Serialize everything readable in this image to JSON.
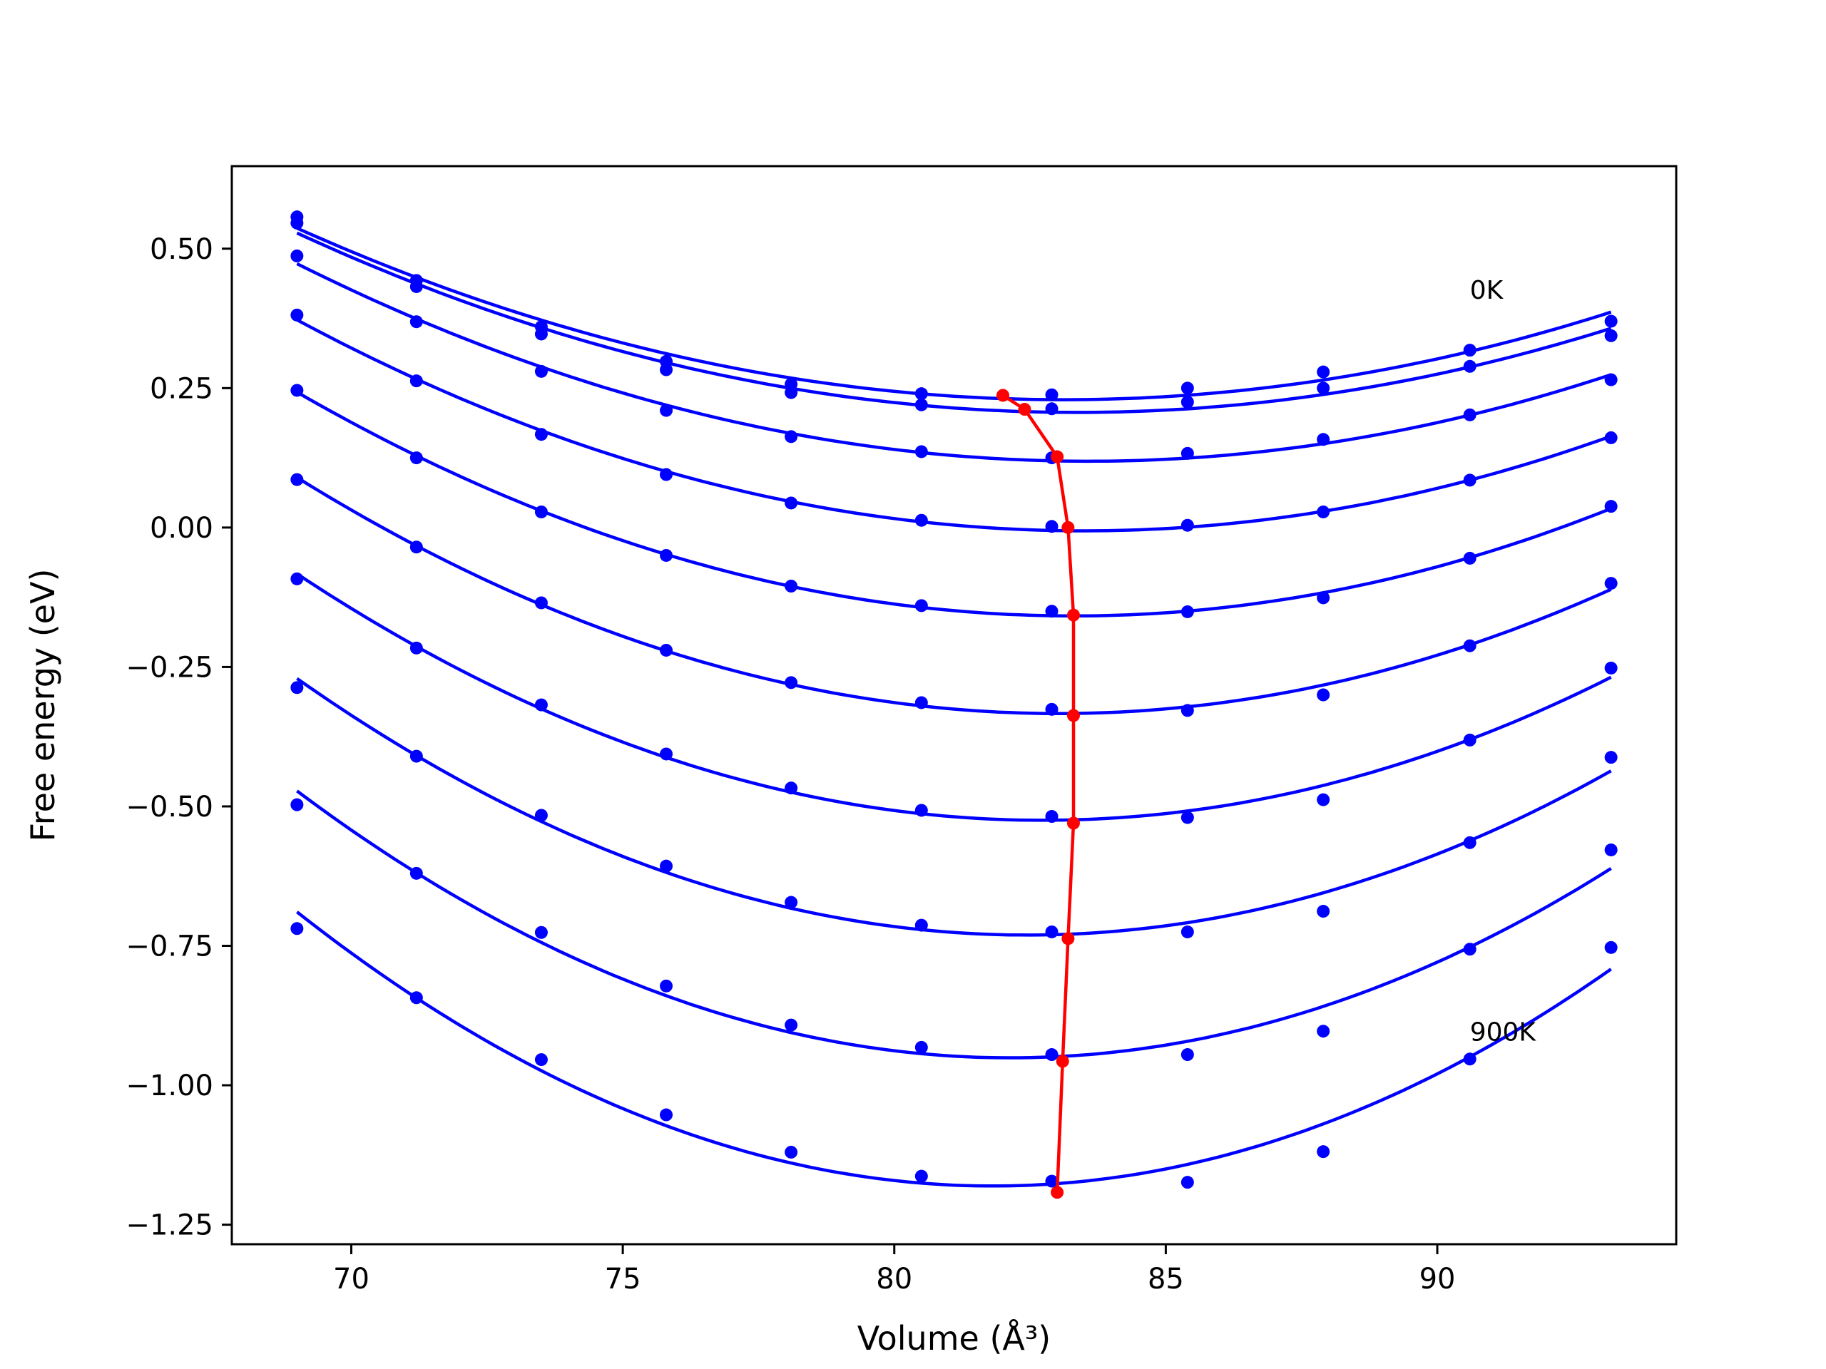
{
  "chart_data": {
    "type": "line",
    "xlabel": "Volume (Å³)",
    "ylabel": "Free energy (eV)",
    "xlim": [
      67.8,
      94.4
    ],
    "ylim": [
      -1.285,
      0.648
    ],
    "xticks": [
      70,
      75,
      80,
      85,
      90
    ],
    "xtick_labels": [
      "70",
      "75",
      "80",
      "85",
      "90"
    ],
    "yticks": [
      0.5,
      0.25,
      0.0,
      -0.25,
      -0.5,
      -0.75,
      -1.0,
      -1.25
    ],
    "ytick_labels": [
      "0.50",
      "0.25",
      "0.00",
      "−0.25",
      "−0.50",
      "−0.75",
      "−1.00",
      "−1.25"
    ],
    "grid": false,
    "legend": "none",
    "colors": {
      "curves": "#0000ff",
      "minimum_path": "#ff0000"
    },
    "x": [
      69.0,
      71.2,
      73.5,
      75.8,
      78.1,
      80.5,
      82.9,
      85.4,
      87.9,
      90.6,
      93.2
    ],
    "series": [
      {
        "values": [
          0.557,
          0.443,
          0.36,
          0.298,
          0.257,
          0.24,
          0.238,
          0.25,
          0.279,
          0.318,
          0.37
        ]
      },
      {
        "values": [
          0.546,
          0.432,
          0.347,
          0.283,
          0.242,
          0.22,
          0.213,
          0.225,
          0.25,
          0.289,
          0.344
        ]
      },
      {
        "values": [
          0.487,
          0.369,
          0.28,
          0.21,
          0.163,
          0.136,
          0.125,
          0.133,
          0.158,
          0.202,
          0.265
        ]
      },
      {
        "values": [
          0.381,
          0.263,
          0.167,
          0.095,
          0.044,
          0.013,
          0.002,
          0.004,
          0.028,
          0.085,
          0.161
        ]
      },
      {
        "values": [
          0.246,
          0.125,
          0.028,
          -0.05,
          -0.105,
          -0.14,
          -0.15,
          -0.151,
          -0.126,
          -0.055,
          0.038
        ]
      },
      {
        "values": [
          0.086,
          -0.035,
          -0.135,
          -0.22,
          -0.278,
          -0.314,
          -0.326,
          -0.328,
          -0.3,
          -0.212,
          -0.1
        ]
      },
      {
        "values": [
          -0.092,
          -0.216,
          -0.318,
          -0.406,
          -0.467,
          -0.507,
          -0.518,
          -0.52,
          -0.488,
          -0.381,
          -0.252
        ]
      },
      {
        "values": [
          -0.287,
          -0.41,
          -0.516,
          -0.607,
          -0.672,
          -0.713,
          -0.725,
          -0.725,
          -0.688,
          -0.565,
          -0.412
        ]
      },
      {
        "values": [
          -0.497,
          -0.62,
          -0.726,
          -0.822,
          -0.892,
          -0.932,
          -0.945,
          -0.945,
          -0.903,
          -0.756,
          -0.578
        ]
      },
      {
        "values": [
          -0.719,
          -0.843,
          -0.954,
          -1.053,
          -1.12,
          -1.163,
          -1.172,
          -1.174,
          -1.119,
          -0.953,
          -0.753
        ]
      }
    ],
    "minimum_path": {
      "x": [
        82.0,
        82.4,
        83.0,
        83.2,
        83.3,
        83.3,
        83.3,
        83.2,
        83.1,
        83.0
      ],
      "y": [
        0.237,
        0.212,
        0.127,
        0.0,
        -0.157,
        -0.337,
        -0.53,
        -0.737,
        -0.957,
        -1.192
      ]
    },
    "annotations": [
      {
        "text": "0K",
        "x": 90.6,
        "y": 0.41
      },
      {
        "text": "900K",
        "x": 90.6,
        "y": -0.92
      }
    ]
  }
}
